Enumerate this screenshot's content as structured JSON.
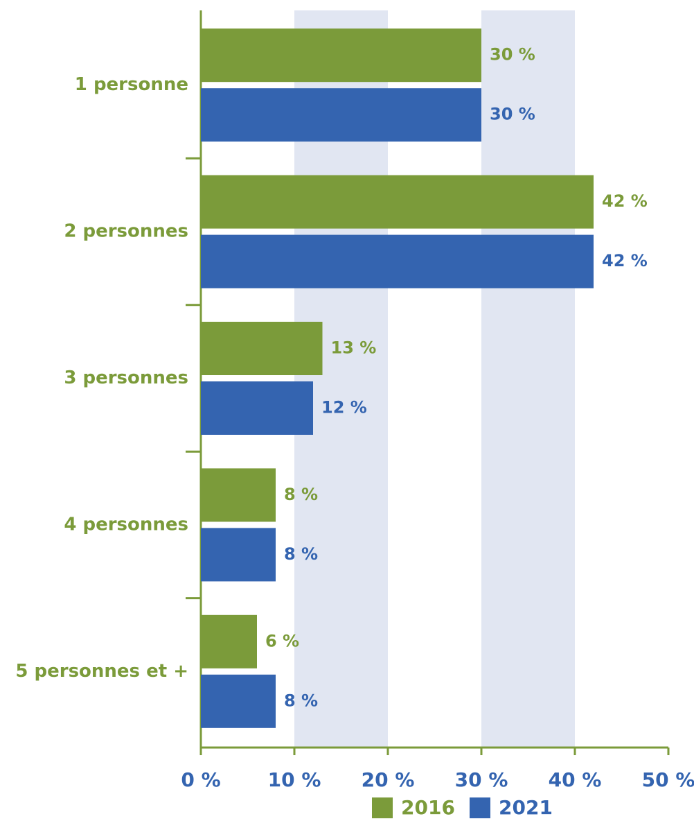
{
  "chart_data": {
    "type": "bar",
    "orientation": "horizontal",
    "categories": [
      "1 personne",
      "2 personnes",
      "3 personnes",
      "4 personnes",
      "5 personnes et +"
    ],
    "series": [
      {
        "name": "2016",
        "color": "#7b9b3a",
        "values": [
          30,
          42,
          13,
          8,
          6
        ],
        "value_labels": [
          "30 %",
          "42 %",
          "13 %",
          "8 %",
          "6 %"
        ]
      },
      {
        "name": "2021",
        "color": "#3464b0",
        "values": [
          30,
          42,
          12,
          8,
          8
        ],
        "value_labels": [
          "30 %",
          "42 %",
          "12 %",
          "8 %",
          "8 %"
        ]
      }
    ],
    "xlim": [
      0,
      50
    ],
    "xticks": [
      {
        "value": 0,
        "label": "0 %"
      },
      {
        "value": 10,
        "label": "10 %"
      },
      {
        "value": 20,
        "label": "20 %"
      },
      {
        "value": 30,
        "label": "30 %"
      },
      {
        "value": 40,
        "label": "40 %"
      },
      {
        "value": 50,
        "label": "50 %"
      }
    ],
    "alternating_bands": true,
    "band_color": "#e1e6f2",
    "axis_color": "#7b9b3a",
    "category_color": "#7b9b3a",
    "tick_color": "#3464b0",
    "legend": "bottom"
  }
}
